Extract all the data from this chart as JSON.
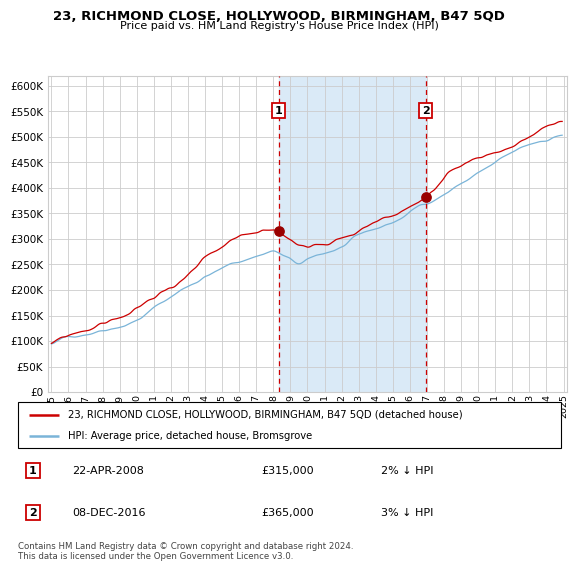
{
  "title": "23, RICHMOND CLOSE, HOLLYWOOD, BIRMINGHAM, B47 5QD",
  "subtitle": "Price paid vs. HM Land Registry's House Price Index (HPI)",
  "legend_line1": "23, RICHMOND CLOSE, HOLLYWOOD, BIRMINGHAM, B47 5QD (detached house)",
  "legend_line2": "HPI: Average price, detached house, Bromsgrove",
  "footnote": "Contains HM Land Registry data © Crown copyright and database right 2024.\nThis data is licensed under the Open Government Licence v3.0.",
  "annotation1_date": "22-APR-2008",
  "annotation1_price": "£315,000",
  "annotation1_hpi": "2% ↓ HPI",
  "annotation2_date": "08-DEC-2016",
  "annotation2_price": "£365,000",
  "annotation2_hpi": "3% ↓ HPI",
  "hpi_color": "#7ab4d8",
  "price_color": "#cc0000",
  "dot_color": "#990000",
  "vline_color": "#cc0000",
  "shading_color": "#daeaf7",
  "background_color": "#ffffff",
  "grid_color": "#cccccc",
  "ylim": [
    0,
    620000
  ],
  "ytick_step": 50000,
  "x_start_year": 1995,
  "x_end_year": 2025,
  "event1_year": 2008.31,
  "event2_year": 2016.93,
  "event1_price": 315000,
  "event2_price": 365000
}
